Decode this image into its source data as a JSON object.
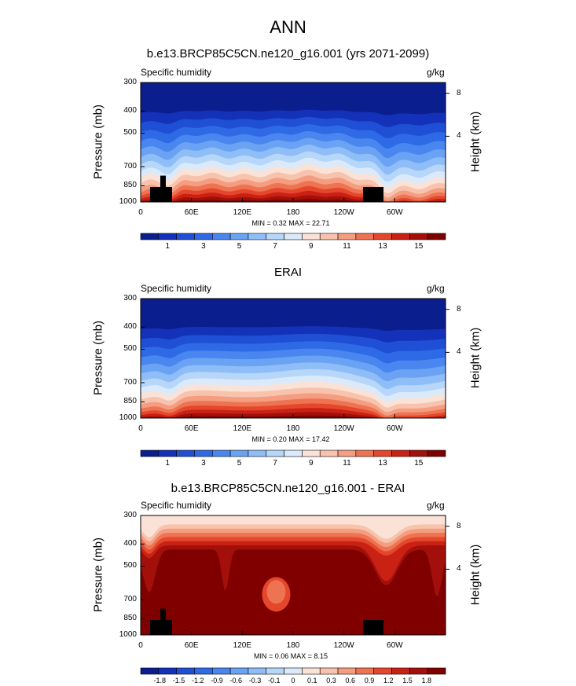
{
  "page_title": "ANN",
  "colors": {
    "abs_scale": [
      "#0b1e8e",
      "#1432b9",
      "#1f4fd4",
      "#2f6ae6",
      "#4a86ef",
      "#6aa3f4",
      "#8fbdf7",
      "#b6d6fa",
      "#dbeafb",
      "#fbe2d6",
      "#f8c3ad",
      "#f49d80",
      "#ee7352",
      "#e4472c",
      "#c92114",
      "#a3100b",
      "#800000"
    ],
    "diff_scale": [
      "#0b1e8e",
      "#1432b9",
      "#1f4fd4",
      "#2f6ae6",
      "#4a86ef",
      "#6aa3f4",
      "#8fbdf7",
      "#b6d6fa",
      "#dbeafb",
      "#fbe2d6",
      "#f8c3ad",
      "#f49d80",
      "#ee7352",
      "#e4472c",
      "#c92114",
      "#a3100b",
      "#800000"
    ]
  },
  "chart_data": [
    {
      "type": "heatmap",
      "title": "b.e13.BRCP85C5CN.ne120_g16.001 (yrs 2071-2099)",
      "left_label": "Specific humidity",
      "right_label": "g/kg",
      "ylabel": "Pressure (mb)",
      "ylabel_right": "Height (km)",
      "x_ticks": [
        "0",
        "60E",
        "120E",
        "180",
        "120W",
        "60W"
      ],
      "y_ticks": [
        "300",
        "400",
        "500",
        "700",
        "850",
        "1000"
      ],
      "y_ticks_right": [
        "8",
        "4"
      ],
      "min_text": "MIN =   0.32   MAX =  22.71",
      "colorbar_labels": [
        "1",
        "3",
        "5",
        "7",
        "9",
        "11",
        "13",
        "15"
      ],
      "levels": [
        1,
        2,
        3,
        4,
        5,
        6,
        7,
        8,
        9,
        10,
        11,
        12,
        13,
        14,
        15,
        16
      ],
      "min": 0.32,
      "max": 22.71
    },
    {
      "type": "heatmap",
      "title": "ERAI",
      "left_label": "Specific humidity",
      "right_label": "g/kg",
      "ylabel": "Pressure (mb)",
      "ylabel_right": "Height (km)",
      "x_ticks": [
        "0",
        "60E",
        "120E",
        "180",
        "120W",
        "60W"
      ],
      "y_ticks": [
        "300",
        "400",
        "500",
        "700",
        "850",
        "1000"
      ],
      "y_ticks_right": [
        "8",
        "4"
      ],
      "min_text": "MIN =   0.20   MAX =  17.42",
      "colorbar_labels": [
        "1",
        "3",
        "5",
        "7",
        "9",
        "11",
        "13",
        "15"
      ],
      "levels": [
        1,
        2,
        3,
        4,
        5,
        6,
        7,
        8,
        9,
        10,
        11,
        12,
        13,
        14,
        15,
        16
      ],
      "min": 0.2,
      "max": 17.42
    },
    {
      "type": "heatmap",
      "title": "b.e13.BRCP85C5CN.ne120_g16.001 - ERAI",
      "left_label": "Specific humidity",
      "right_label": "g/kg",
      "ylabel": "Pressure (mb)",
      "ylabel_right": "Height (km)",
      "x_ticks": [
        "0",
        "60E",
        "120E",
        "180",
        "120W",
        "60W"
      ],
      "y_ticks": [
        "300",
        "400",
        "500",
        "700",
        "850",
        "1000"
      ],
      "y_ticks_right": [
        "8",
        "4"
      ],
      "min_text": "MIN =   0.06   MAX =   8.15",
      "colorbar_labels": [
        "-1.8",
        "-1.5",
        "-1.2",
        "-0.9",
        "-0.6",
        "-0.3",
        "-0.1",
        "0",
        "0.1",
        "0.3",
        "0.6",
        "0.9",
        "1.2",
        "1.5",
        "1.8"
      ],
      "levels": [
        -1.8,
        -1.5,
        -1.2,
        -0.9,
        -0.6,
        -0.3,
        -0.1,
        0,
        0.1,
        0.3,
        0.6,
        0.9,
        1.2,
        1.5,
        1.8
      ],
      "min": 0.06,
      "max": 8.15
    }
  ]
}
